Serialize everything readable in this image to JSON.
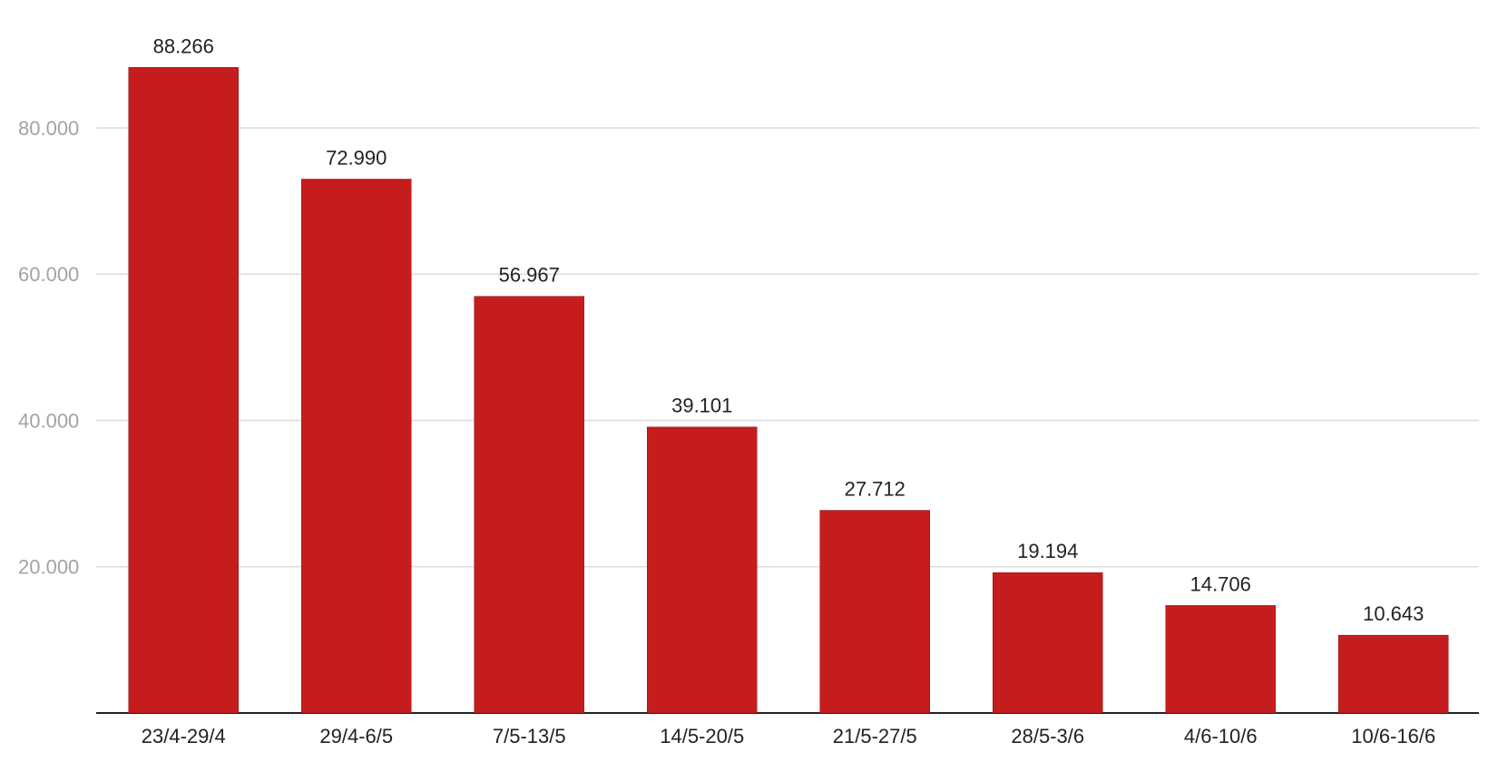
{
  "chart_data": {
    "type": "bar",
    "categories": [
      "23/4-29/4",
      "29/4-6/5",
      "7/5-13/5",
      "14/5-20/5",
      "21/5-27/5",
      "28/5-3/6",
      "4/6-10/6",
      "10/6-16/6"
    ],
    "values": [
      88266,
      72990,
      56967,
      39101,
      27712,
      19194,
      14706,
      10643
    ],
    "value_labels": [
      "88.266",
      "72.990",
      "56.967",
      "39.101",
      "27.712",
      "19.194",
      "14.706",
      "10.643"
    ],
    "y_ticks": [
      20000,
      40000,
      60000,
      80000
    ],
    "y_tick_labels": [
      "20.000",
      "40.000",
      "60.000",
      "80.000"
    ],
    "ylim": [
      0,
      95000
    ],
    "grid": true,
    "legend": "none",
    "title": "",
    "xlabel": "",
    "ylabel": "",
    "colors": {
      "bar": "#c51d1d",
      "grid": "#dcdcdc",
      "axis": "#222222",
      "tick_text": "#a3a3a3",
      "label_text": "#222222"
    }
  }
}
